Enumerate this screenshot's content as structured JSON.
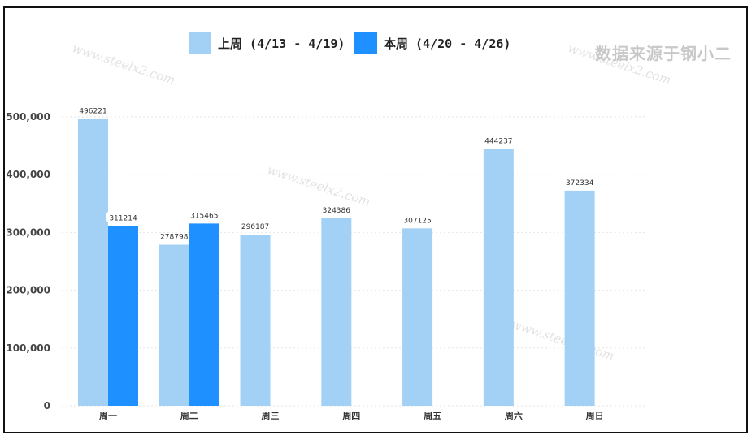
{
  "source_label": "数据来源于钢小二",
  "watermark_text": "www.steelx2.com",
  "colors": {
    "last_week": "#a3d0f5",
    "this_week": "#1e90ff",
    "grid": "#e6e6e6",
    "axis_text": "#444444",
    "label_text": "#333333"
  },
  "chart_data": {
    "type": "bar",
    "categories": [
      "周一",
      "周二",
      "周三",
      "周四",
      "周五",
      "周六",
      "周日"
    ],
    "series": [
      {
        "name": "上周 (4/13 - 4/19)",
        "values": [
          496221,
          278798,
          296187,
          324386,
          307125,
          444237,
          372334
        ]
      },
      {
        "name": "本周 (4/20 - 4/26)",
        "values": [
          311214,
          315465,
          null,
          null,
          null,
          null,
          null
        ]
      }
    ],
    "ylim": [
      0,
      500000
    ],
    "yticks": [
      0,
      100000,
      200000,
      300000,
      400000,
      500000
    ],
    "ytick_labels": [
      "0",
      "100,000",
      "200,000",
      "300,000",
      "400,000",
      "500,000"
    ],
    "grid": true,
    "legend_position": "top-center",
    "data_labels": true
  }
}
